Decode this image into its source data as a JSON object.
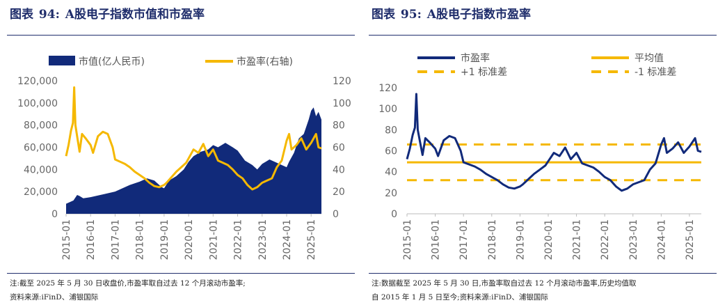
{
  "figures": [
    {
      "title_label": "图表",
      "title_num": "94:",
      "title_text": "A股电子指数市值和市盈率",
      "note_lines": [
        "注:截至 2025 年 5 月 30 日收盘价,市盈率取自过去 12 个月滚动市盈率;",
        "资料来源:iFinD、浦银国际"
      ]
    },
    {
      "title_label": "图表",
      "title_num": "95:",
      "title_text": "A股电子指数市盈率",
      "note_lines": [
        "注:数据截至 2025 年 5 月 30 日,市盈率取自过去 12 个月滚动市盈率,历史均值取",
        "自 2015 年 1 月 5 日至今;资料来源:iFinD、浦银国际"
      ]
    }
  ],
  "colors": {
    "navy": "#112a7a",
    "gold": "#f5b800",
    "title": "#1f2d6b"
  },
  "chart_data": [
    {
      "type": "area",
      "x_labels": [
        "2015-01",
        "2016-01",
        "2017-01",
        "2018-01",
        "2019-01",
        "2020-01",
        "2021-01",
        "2022-01",
        "2023-01",
        "2024-01",
        "2025-01"
      ],
      "y_left_ticks": [
        "0",
        "20,000",
        "40,000",
        "60,000",
        "80,000",
        "100,000",
        "120,000"
      ],
      "y_right_ticks": [
        "0",
        "20",
        "40",
        "60",
        "80",
        "100",
        "120"
      ],
      "ylim_left": [
        0,
        120000
      ],
      "ylim_right": [
        0,
        120
      ],
      "series": [
        {
          "name": "市值(亿人民币)",
          "kind": "area",
          "axis": "left",
          "x": [
            2015.0,
            2015.3,
            2015.45,
            2015.55,
            2015.7,
            2016.0,
            2016.3,
            2016.6,
            2017.0,
            2017.3,
            2017.6,
            2018.0,
            2018.3,
            2018.6,
            2018.9,
            2019.0,
            2019.2,
            2019.5,
            2019.8,
            2020.0,
            2020.2,
            2020.5,
            2020.8,
            2021.0,
            2021.2,
            2021.5,
            2021.8,
            2022.0,
            2022.3,
            2022.6,
            2022.8,
            2023.0,
            2023.3,
            2023.6,
            2023.8,
            2024.0,
            2024.1,
            2024.3,
            2024.5,
            2024.7,
            2024.9,
            2025.0,
            2025.1,
            2025.2,
            2025.3,
            2025.42
          ],
          "values": [
            9000,
            12000,
            17000,
            16000,
            14000,
            15000,
            16500,
            18000,
            20000,
            23000,
            26000,
            29000,
            32000,
            30000,
            24000,
            23000,
            30000,
            34000,
            40000,
            47000,
            52000,
            56000,
            58000,
            62000,
            60000,
            64000,
            60000,
            57000,
            48000,
            44000,
            40000,
            45000,
            49000,
            46000,
            44000,
            42000,
            47000,
            55000,
            68000,
            72000,
            85000,
            93000,
            96000,
            88000,
            92000,
            85000
          ]
        },
        {
          "name": "市盈率(右轴)",
          "kind": "line",
          "axis": "right",
          "x": [
            2015.0,
            2015.1,
            2015.2,
            2015.28,
            2015.33,
            2015.38,
            2015.45,
            2015.55,
            2015.65,
            2015.8,
            2016.0,
            2016.1,
            2016.3,
            2016.5,
            2016.7,
            2016.9,
            2017.0,
            2017.2,
            2017.4,
            2017.6,
            2017.8,
            2018.0,
            2018.2,
            2018.4,
            2018.6,
            2018.8,
            2019.0,
            2019.1,
            2019.3,
            2019.5,
            2019.7,
            2019.9,
            2020.0,
            2020.2,
            2020.4,
            2020.6,
            2020.8,
            2021.0,
            2021.2,
            2021.4,
            2021.6,
            2021.8,
            2022.0,
            2022.2,
            2022.4,
            2022.6,
            2022.8,
            2023.0,
            2023.2,
            2023.4,
            2023.6,
            2023.8,
            2024.0,
            2024.1,
            2024.2,
            2024.4,
            2024.6,
            2024.8,
            2025.0,
            2025.2,
            2025.3,
            2025.42
          ],
          "values": [
            52,
            62,
            75,
            82,
            114,
            80,
            70,
            56,
            72,
            68,
            62,
            55,
            70,
            74,
            72,
            60,
            49,
            47,
            45,
            42,
            38,
            35,
            32,
            28,
            25,
            24,
            26,
            28,
            33,
            38,
            42,
            46,
            50,
            58,
            55,
            63,
            52,
            58,
            48,
            46,
            44,
            40,
            35,
            32,
            26,
            22,
            24,
            28,
            30,
            32,
            42,
            48,
            66,
            72,
            58,
            62,
            68,
            58,
            64,
            72,
            60,
            59
          ]
        }
      ]
    },
    {
      "type": "line",
      "x_labels": [
        "2015-01",
        "2016-01",
        "2017-01",
        "2018-01",
        "2019-01",
        "2020-01",
        "2021-01",
        "2022-01",
        "2023-01",
        "2024-01",
        "2025-01"
      ],
      "y_ticks": [
        "0",
        "20",
        "40",
        "60",
        "80",
        "100",
        "120"
      ],
      "ylim": [
        0,
        120
      ],
      "mean": 49,
      "plus1sd": 66,
      "minus1sd": 32,
      "series": [
        {
          "name": "市盈率",
          "kind": "line",
          "x": [
            2015.0,
            2015.1,
            2015.2,
            2015.28,
            2015.33,
            2015.38,
            2015.45,
            2015.55,
            2015.65,
            2015.8,
            2016.0,
            2016.1,
            2016.3,
            2016.5,
            2016.7,
            2016.9,
            2017.0,
            2017.2,
            2017.4,
            2017.6,
            2017.8,
            2018.0,
            2018.2,
            2018.4,
            2018.6,
            2018.8,
            2019.0,
            2019.1,
            2019.3,
            2019.5,
            2019.7,
            2019.9,
            2020.0,
            2020.2,
            2020.4,
            2020.6,
            2020.8,
            2021.0,
            2021.2,
            2021.4,
            2021.6,
            2021.8,
            2022.0,
            2022.2,
            2022.4,
            2022.6,
            2022.8,
            2023.0,
            2023.2,
            2023.4,
            2023.6,
            2023.8,
            2024.0,
            2024.1,
            2024.2,
            2024.4,
            2024.6,
            2024.8,
            2025.0,
            2025.2,
            2025.3,
            2025.42
          ],
          "values": [
            52,
            62,
            75,
            82,
            114,
            80,
            70,
            56,
            72,
            68,
            62,
            55,
            70,
            74,
            72,
            60,
            49,
            47,
            45,
            42,
            38,
            35,
            32,
            28,
            25,
            24,
            26,
            28,
            33,
            38,
            42,
            46,
            50,
            58,
            55,
            63,
            52,
            58,
            48,
            46,
            44,
            40,
            35,
            32,
            26,
            22,
            24,
            28,
            30,
            32,
            42,
            48,
            66,
            72,
            58,
            62,
            68,
            58,
            64,
            72,
            60,
            59
          ]
        }
      ],
      "legend": [
        "市盈率",
        "平均值",
        "+1 标准差",
        "-1 标准差"
      ]
    }
  ]
}
